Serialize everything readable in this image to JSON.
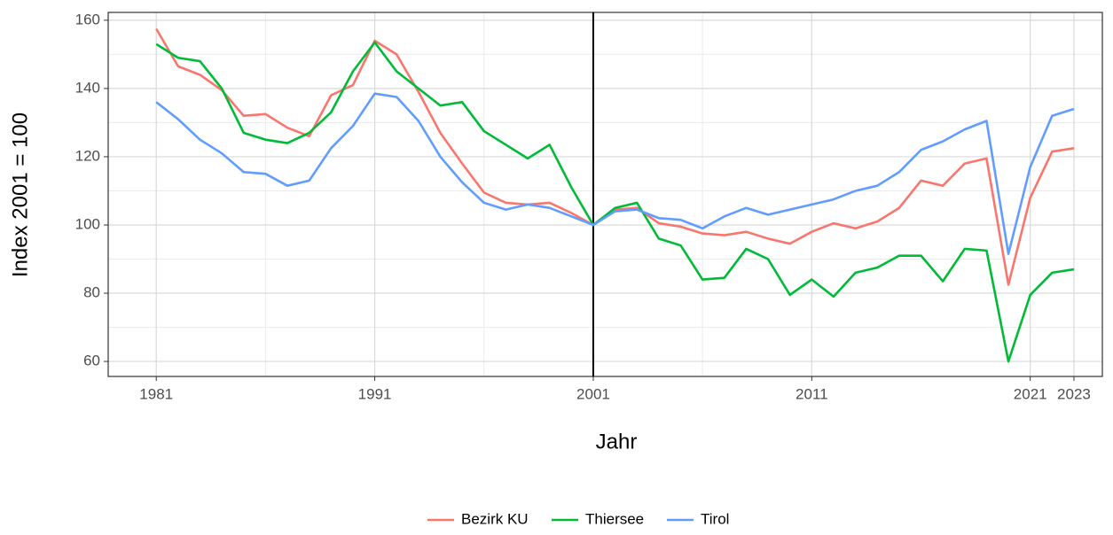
{
  "chart_data": {
    "type": "line",
    "x_label": "Jahr",
    "y_label": "Index 2001 = 100",
    "x": [
      1981,
      1982,
      1983,
      1984,
      1985,
      1986,
      1987,
      1988,
      1989,
      1990,
      1991,
      1992,
      1993,
      1994,
      1995,
      1996,
      1997,
      1998,
      1999,
      2000,
      2001,
      2002,
      2003,
      2004,
      2005,
      2006,
      2007,
      2008,
      2009,
      2010,
      2011,
      2012,
      2013,
      2014,
      2015,
      2016,
      2017,
      2018,
      2019,
      2020,
      2021,
      2022,
      2023
    ],
    "series": [
      {
        "name": "Bezirk KU",
        "color": "#F8766D",
        "values": [
          157.5,
          146.5,
          144,
          139.5,
          132,
          132.5,
          128.5,
          126,
          138,
          141,
          154,
          150,
          139,
          127,
          118,
          109.5,
          106.5,
          106,
          106.5,
          103.5,
          100,
          104.5,
          105,
          100.5,
          99.5,
          97.5,
          97,
          98,
          96,
          94.5,
          98,
          100.5,
          99,
          101,
          105,
          113,
          111.5,
          118,
          119.5,
          82.5,
          108,
          121.5,
          122.5
        ]
      },
      {
        "name": "Thiersee",
        "color": "#00BA38",
        "values": [
          153,
          149,
          148,
          140,
          127,
          125,
          124,
          127,
          133,
          145,
          153.5,
          145,
          140,
          135,
          136,
          127.5,
          123.5,
          119.5,
          123.5,
          111,
          100,
          105,
          106.5,
          96,
          94,
          84,
          84.5,
          93,
          90,
          79.5,
          84,
          79,
          86,
          87.5,
          91,
          91,
          83.5,
          93,
          92.5,
          60,
          79.5,
          86,
          87
        ]
      },
      {
        "name": "Tirol",
        "color": "#619CFF",
        "values": [
          136,
          131,
          125,
          121,
          115.5,
          115,
          111.5,
          113,
          122.5,
          129,
          138.5,
          137.5,
          130.5,
          120,
          112.5,
          106.5,
          104.5,
          106,
          105,
          102.5,
          100,
          104,
          104.5,
          102,
          101.5,
          99,
          102.5,
          105,
          103,
          104.5,
          106,
          107.5,
          110,
          111.5,
          115.5,
          122,
          124.5,
          128,
          130.5,
          91.5,
          117,
          132,
          134
        ]
      }
    ],
    "xlim": [
      1978.8,
      2024.3
    ],
    "xticks": [
      1981,
      1991,
      2001,
      2011,
      2021,
      2023
    ],
    "ylim": [
      55.6,
      162.3
    ],
    "yticks": [
      60,
      80,
      100,
      120,
      140,
      160
    ],
    "grid": true,
    "minor_grid": true,
    "vline": 2001,
    "legend": "bottom"
  }
}
